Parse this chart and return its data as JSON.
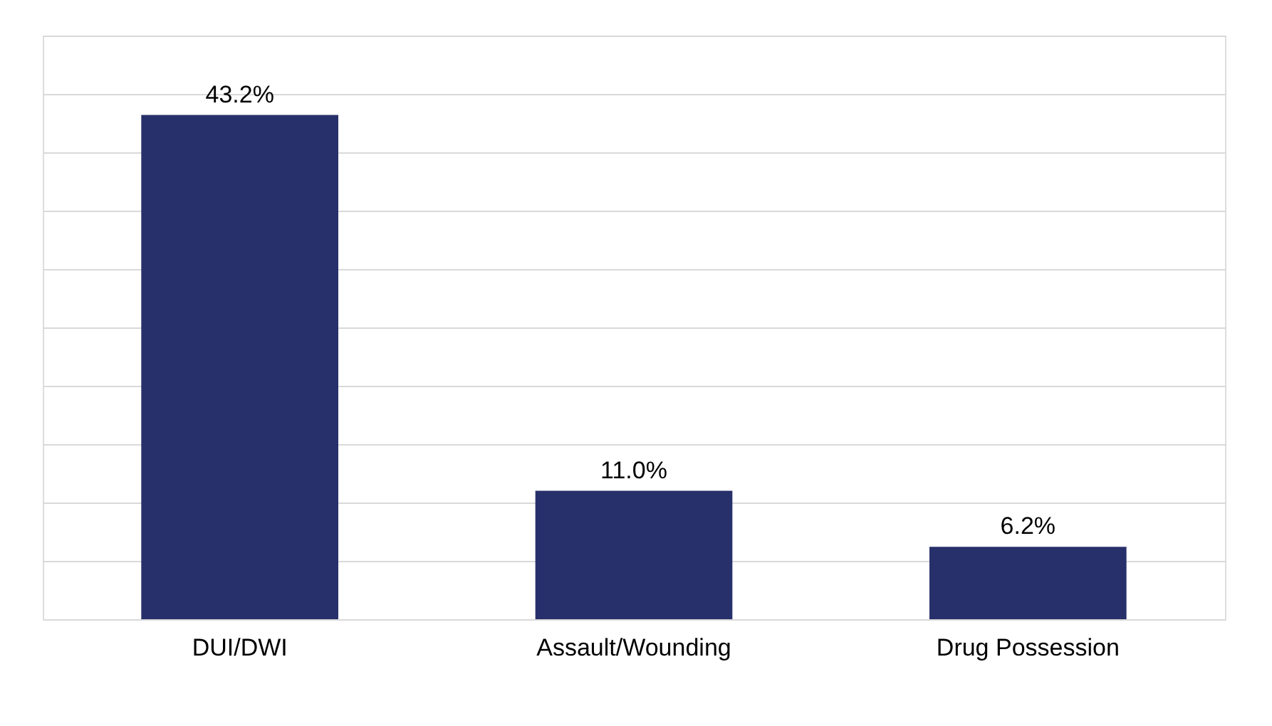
{
  "chart_data": {
    "type": "bar",
    "categories": [
      "DUI/DWI",
      "Assault/Wounding",
      "Drug Possession"
    ],
    "values": [
      43.2,
      11.0,
      6.2
    ],
    "value_labels": [
      "43.2%",
      "11.0%",
      "6.2%"
    ],
    "color": "#27306a",
    "ylim": [
      0,
      50
    ],
    "yticks": [
      0,
      5,
      10,
      15,
      20,
      25,
      30,
      35,
      40,
      45,
      50
    ],
    "grid": "y",
    "tick_labels": "x"
  }
}
